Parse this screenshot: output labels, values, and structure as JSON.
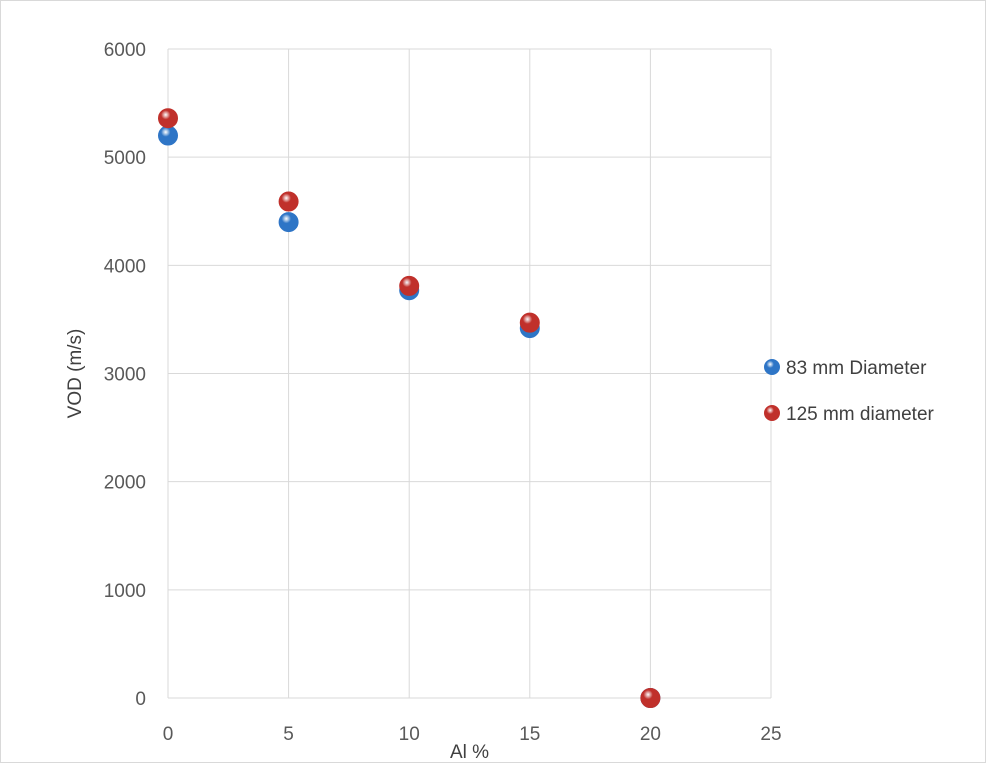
{
  "chart_data": {
    "type": "scatter",
    "xlabel": "Al %",
    "ylabel": "VOD (m/s)",
    "xlim": [
      0,
      25
    ],
    "ylim": [
      0,
      6000
    ],
    "x_ticks": [
      "0",
      "5",
      "10",
      "15",
      "20",
      "25"
    ],
    "y_ticks": [
      "0",
      "1000",
      "2000",
      "3000",
      "4000",
      "5000",
      "6000"
    ],
    "grid": true,
    "legend_position": "right",
    "series": [
      {
        "name": "83 mm Diameter",
        "color": "#2e75c6",
        "x": [
          0,
          5,
          10,
          15,
          20
        ],
        "y": [
          5200,
          4400,
          3770,
          3420,
          0
        ]
      },
      {
        "name": "125 mm diameter",
        "color": "#c0302b",
        "x": [
          0,
          5,
          10,
          15,
          20
        ],
        "y": [
          5360,
          4590,
          3810,
          3470,
          0
        ]
      }
    ]
  }
}
